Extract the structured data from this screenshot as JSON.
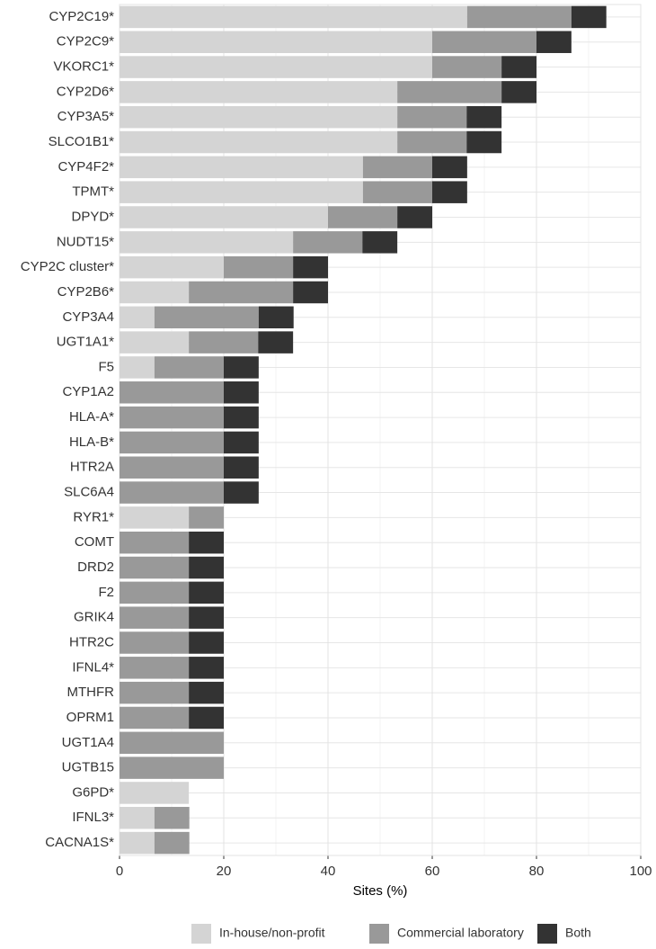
{
  "chart_data": {
    "type": "stacked_bar_horizontal",
    "x_label": "Sites (%)",
    "categories": [
      "CYP2C19*",
      "CYP2C9*",
      "VKORC1*",
      "CYP2D6*",
      "CYP3A5*",
      "SLCO1B1*",
      "CYP4F2*",
      "TPMT*",
      "DPYD*",
      "NUDT15*",
      "CYP2C cluster*",
      "CYP2B6*",
      "CYP3A4",
      "UGT1A1*",
      "F5",
      "CYP1A2",
      "HLA-A*",
      "HLA-B*",
      "HTR2A",
      "SLC6A4",
      "RYR1*",
      "COMT",
      "DRD2",
      "F2",
      "GRIK4",
      "HTR2C",
      "IFNL4*",
      "MTHFR",
      "OPRM1",
      "UGT1A4",
      "UGTB15",
      "G6PD*",
      "IFNL3*",
      "CACNA1S*"
    ],
    "series": [
      {
        "name": "In-house/non-profit",
        "color": "#d4d4d4",
        "values": [
          66.7,
          60,
          60,
          53.3,
          53.3,
          53.3,
          46.7,
          46.7,
          40,
          33.3,
          20,
          13.3,
          6.7,
          13.3,
          6.7,
          0,
          0,
          0,
          0,
          0,
          13.3,
          0,
          0,
          0,
          0,
          0,
          0,
          0,
          0,
          0,
          0,
          13.3,
          6.7,
          6.7
        ]
      },
      {
        "name": "Commercial laboratory",
        "color": "#999999",
        "values": [
          20,
          20,
          13.3,
          20,
          13.3,
          13.3,
          13.3,
          13.3,
          13.3,
          13.3,
          13.3,
          20,
          20,
          13.3,
          13.3,
          20,
          20,
          20,
          20,
          20,
          6.7,
          13.3,
          13.3,
          13.3,
          13.3,
          13.3,
          13.3,
          13.3,
          13.3,
          20,
          20,
          0,
          6.7,
          6.7
        ]
      },
      {
        "name": "Both",
        "color": "#333333",
        "values": [
          6.7,
          6.7,
          6.7,
          6.7,
          6.7,
          6.7,
          6.7,
          6.7,
          6.7,
          6.7,
          6.7,
          6.7,
          6.7,
          6.7,
          6.7,
          6.7,
          6.7,
          6.7,
          6.7,
          6.7,
          0,
          6.7,
          6.7,
          6.7,
          6.7,
          6.7,
          6.7,
          6.7,
          6.7,
          0,
          0,
          0,
          0,
          0
        ]
      }
    ],
    "xlim": [
      0,
      100
    ],
    "xticks": [
      0,
      20,
      40,
      60,
      80,
      100
    ],
    "x_minor_ticks": [
      10,
      30,
      50,
      70,
      90
    ],
    "grid": true,
    "legend_position": "bottom"
  }
}
